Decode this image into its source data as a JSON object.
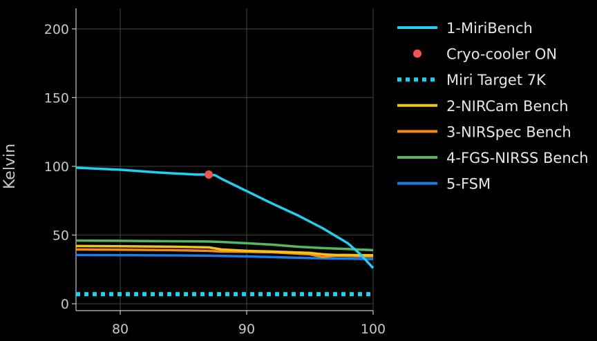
{
  "chart_data": {
    "type": "line",
    "ylabel": "Kelvin",
    "xlim": [
      76.5,
      100
    ],
    "ylim": [
      -5,
      215
    ],
    "x_ticks": [
      80,
      90,
      100
    ],
    "y_ticks": [
      0,
      50,
      100,
      150,
      200
    ],
    "grid": true,
    "legend_position": "right",
    "colors": {
      "background": "#000000",
      "grid": "#3a3a3a",
      "axis_text": "#c8c8c8"
    },
    "series": [
      {
        "name": "1-MiriBench",
        "style": "line",
        "color": "#1fd0ef",
        "x": [
          76.5,
          80,
          83,
          86,
          87,
          87.5,
          88,
          90,
          92,
          94,
          96,
          98,
          99,
          100
        ],
        "y": [
          99,
          97.5,
          95.5,
          94,
          94,
          93.5,
          91,
          82,
          73,
          64.5,
          55,
          44,
          36,
          26
        ]
      },
      {
        "name": "Cryo-cooler ON",
        "style": "marker",
        "color": "#ef5550",
        "x": [
          87
        ],
        "y": [
          94
        ]
      },
      {
        "name": "Miri Target 7K",
        "style": "dotted",
        "color": "#1fd0ef",
        "x": [
          76.5,
          100
        ],
        "y": [
          7,
          7
        ]
      },
      {
        "name": "2-NIRCam Bench",
        "style": "line",
        "color": "#f2c318",
        "x": [
          76.5,
          80,
          84,
          87,
          88,
          90,
          92,
          95,
          96,
          97,
          98,
          100
        ],
        "y": [
          42,
          41.8,
          41.5,
          41,
          39.5,
          38.5,
          38,
          37,
          36,
          35.5,
          35.5,
          35.3
        ]
      },
      {
        "name": "3-NIRSpec Bench",
        "style": "line",
        "color": "#f7891a",
        "x": [
          76.5,
          80,
          84,
          87,
          88,
          90,
          92,
          95,
          96,
          97,
          98,
          100
        ],
        "y": [
          39.5,
          39.3,
          39,
          38.5,
          38,
          37.8,
          37.5,
          36,
          34,
          35,
          34.8,
          34.5
        ]
      },
      {
        "name": "4-FGS-NIRSS Bench",
        "style": "line",
        "color": "#55b860",
        "x": [
          76.5,
          80,
          84,
          87,
          88,
          90,
          92,
          94,
          96,
          98,
          100
        ],
        "y": [
          46,
          45.8,
          45.5,
          45.3,
          45,
          44,
          43,
          41.5,
          40.5,
          39.8,
          39
        ]
      },
      {
        "name": "5-FSM",
        "style": "line",
        "color": "#1b7de8",
        "x": [
          76.5,
          80,
          84,
          87,
          88,
          90,
          92,
          94,
          96,
          98,
          100
        ],
        "y": [
          35.5,
          35.4,
          35.2,
          35,
          34.8,
          34.5,
          34,
          33.5,
          33,
          32.8,
          32.5
        ]
      }
    ]
  }
}
